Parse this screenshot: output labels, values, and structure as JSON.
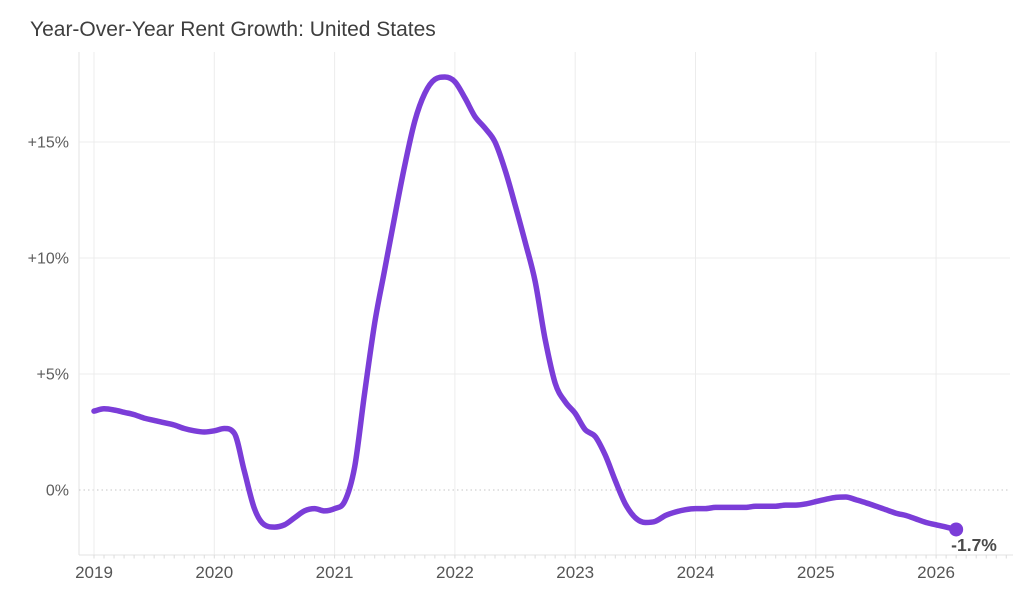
{
  "title": "Year-Over-Year Rent Growth: United States",
  "colors": {
    "line": "#7b3dd8",
    "dot": "#7b3dd8",
    "title_text": "#3e3e3e",
    "axis_text": "#575757",
    "grid": "#ececec",
    "zero_line": "#c6c6c6",
    "plot_border": "#e3e3e3",
    "minor_tick": "#dcdcdc",
    "annotation_text": "#4a4a4a",
    "background": "#ffffff"
  },
  "chart_data": {
    "type": "line",
    "title": "Year-Over-Year Rent Growth: United States",
    "xlabel": "",
    "ylabel": "",
    "legend": "none",
    "grid": "horizontal and vertical, light gray; zero line dotted",
    "x_tick_labels": [
      "2019",
      "2020",
      "2021",
      "2022",
      "2023",
      "2024",
      "2025",
      "2026"
    ],
    "y_ticks": [
      {
        "label": "+15%",
        "value": 15
      },
      {
        "label": "+10%",
        "value": 10
      },
      {
        "label": "+5%",
        "value": 5
      },
      {
        "label": "0%",
        "value": 0
      }
    ],
    "ylim": [
      -2.8,
      18.9
    ],
    "xlim_years": [
      2018.87,
      2026.62
    ],
    "end_label": "-1.7%",
    "latest_value": -1.7,
    "series": [
      {
        "name": "United States",
        "frequency": "monthly",
        "start_year": 2019,
        "start_month": 1,
        "values": [
          3.4,
          3.5,
          3.45,
          3.35,
          3.25,
          3.1,
          3.0,
          2.9,
          2.8,
          2.65,
          2.55,
          2.5,
          2.55,
          2.65,
          2.45,
          0.8,
          -0.8,
          -1.5,
          -1.6,
          -1.5,
          -1.2,
          -0.9,
          -0.8,
          -0.9,
          -0.8,
          -0.5,
          1.0,
          4.2,
          7.2,
          9.5,
          11.8,
          14.0,
          15.9,
          17.1,
          17.7,
          17.8,
          17.6,
          16.9,
          16.1,
          15.6,
          15.0,
          13.8,
          12.3,
          10.7,
          9.0,
          6.5,
          4.6,
          3.8,
          3.3,
          2.6,
          2.3,
          1.5,
          0.4,
          -0.6,
          -1.2,
          -1.4,
          -1.35,
          -1.1,
          -0.95,
          -0.85,
          -0.8,
          -0.8,
          -0.75,
          -0.75,
          -0.75,
          -0.75,
          -0.7,
          -0.7,
          -0.7,
          -0.65,
          -0.65,
          -0.6,
          -0.5,
          -0.4,
          -0.32,
          -0.3,
          -0.42,
          -0.55,
          -0.7,
          -0.85,
          -1.0,
          -1.1,
          -1.25,
          -1.4,
          -1.5,
          -1.6,
          -1.7
        ]
      }
    ]
  }
}
